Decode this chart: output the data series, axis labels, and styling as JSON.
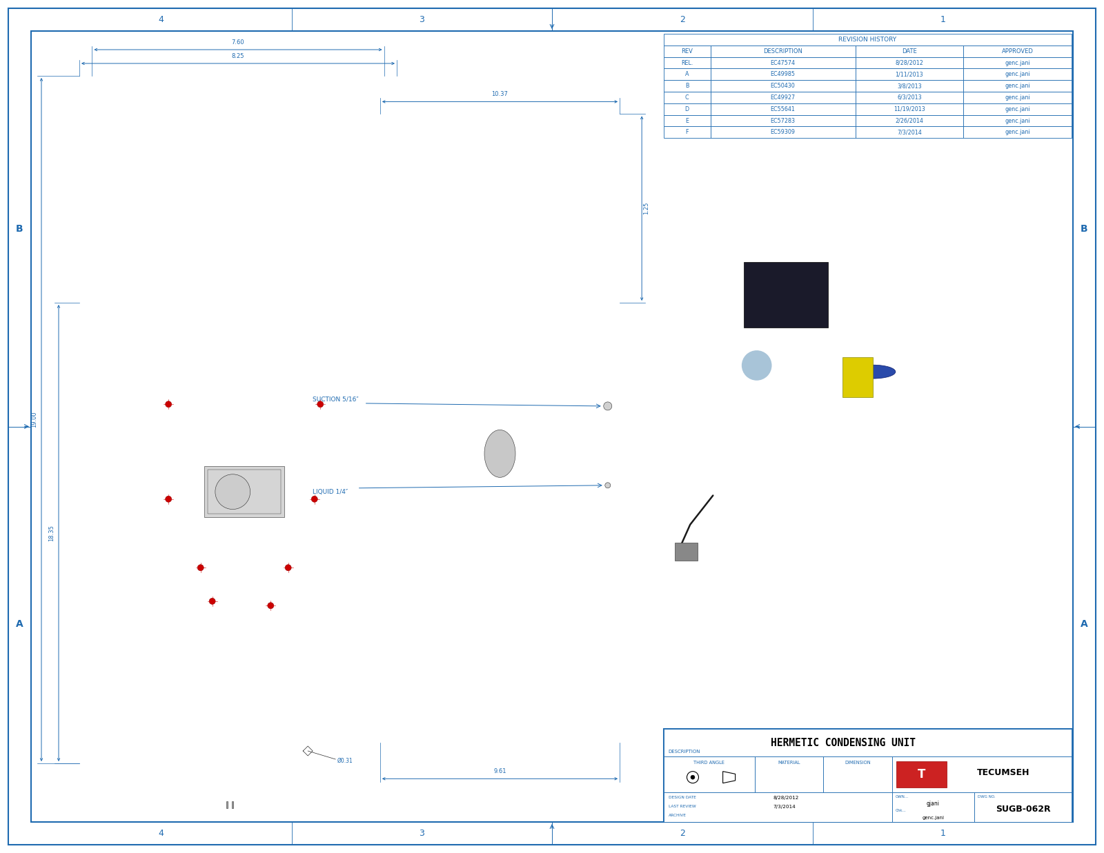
{
  "bg_color": "#ffffff",
  "border_color": "#1e6ab0",
  "title": "HERMETIC CONDENSING UNIT",
  "dwg_no": "SUGB-062R",
  "description_label": "DESCRIPTION",
  "third_angle_label": "THIRD ANGLE",
  "material_label": "MATERIAL",
  "dimension_label": "DIMENSION",
  "design_date_label": "DESIGN DATE",
  "last_review_label": "LAST REVIEW",
  "archive_label": "ARCHIVE",
  "design_date": "8/28/2012",
  "last_review": "7/3/2014",
  "dwg_no_label": "DWG NO.",
  "owner": "gjani",
  "checker": "genc.jani",
  "revision_history_title": "REVISION HISTORY",
  "rev_headers": [
    "REV",
    "DESCRIPTION",
    "DATE",
    "APPROVED"
  ],
  "rev_rows": [
    [
      "REL.",
      "EC47574",
      "8/28/2012",
      "genc.jani"
    ],
    [
      "A",
      "EC49985",
      "1/11/2013",
      "genc.jani"
    ],
    [
      "B",
      "EC50430",
      "3/8/2013",
      "genc.jani"
    ],
    [
      "C",
      "EC49927",
      "6/3/2013",
      "genc.jani"
    ],
    [
      "D",
      "EC55641",
      "11/19/2013",
      "genc.jani"
    ],
    [
      "E",
      "EC57283",
      "2/26/2014",
      "genc.jani"
    ],
    [
      "F",
      "EC59309",
      "7/3/2014",
      "genc.jani"
    ]
  ],
  "page_width": 16.0,
  "page_height": 12.37,
  "suction_label": "SUCTION 5/16″",
  "liquid_label": "LIQUID 1/4″",
  "dim_8_25": "8.25",
  "dim_7_60": "7.60",
  "dim_10_37": "10.37",
  "dim_1_25": "1.25",
  "dim_19_00": "19.00",
  "dim_18_35": "18.35",
  "dim_9_61": "9.61",
  "dim_0_31": "Ø0.31",
  "grid_numbers": [
    "4",
    "3",
    "2",
    "1"
  ],
  "grid_letters": [
    "B",
    "A"
  ],
  "line_color": "#2a2a2a",
  "dim_color": "#1e6ab0",
  "red_dot": "#cc0000",
  "tecumseh_red": "#cc0000"
}
